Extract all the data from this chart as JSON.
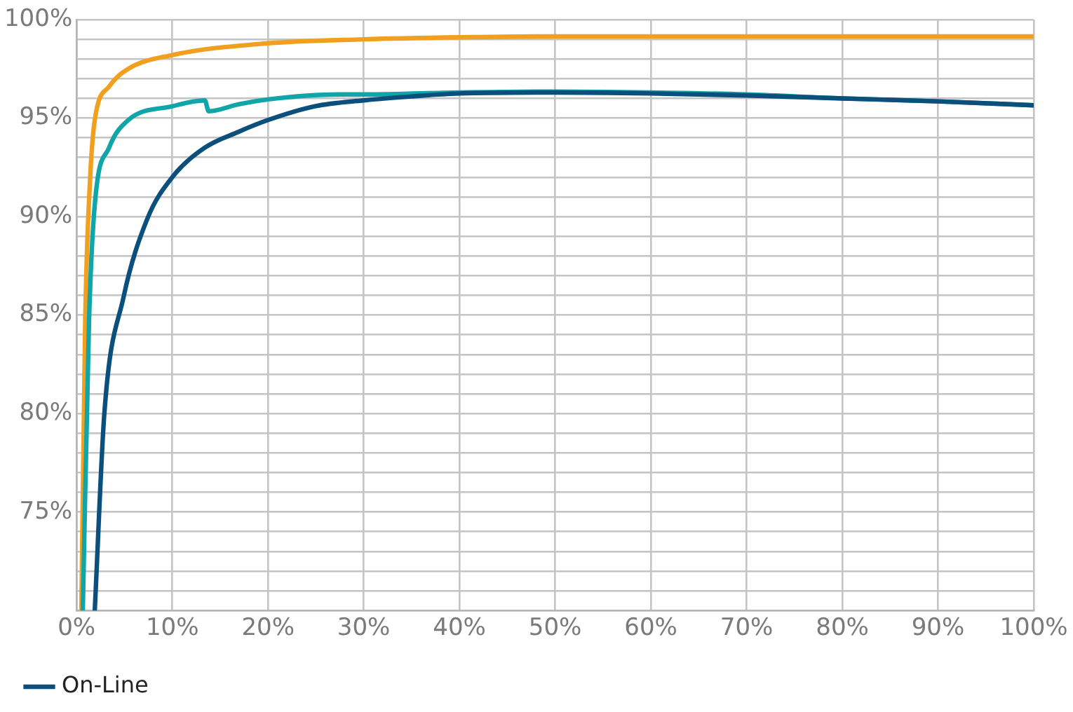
{
  "chart_data": {
    "type": "line",
    "xlim": [
      0,
      100
    ],
    "ylim": [
      70,
      100
    ],
    "xticks": [
      {
        "value": 0,
        "label": "0%"
      },
      {
        "value": 10,
        "label": "10%"
      },
      {
        "value": 20,
        "label": "20%"
      },
      {
        "value": 30,
        "label": "30%"
      },
      {
        "value": 40,
        "label": "40%"
      },
      {
        "value": 50,
        "label": "50%"
      },
      {
        "value": 60,
        "label": "60%"
      },
      {
        "value": 70,
        "label": "70%"
      },
      {
        "value": 80,
        "label": "80%"
      },
      {
        "value": 90,
        "label": "90%"
      },
      {
        "value": 100,
        "label": "100%"
      }
    ],
    "yticks": [
      {
        "value": 70,
        "label": null
      },
      {
        "value": 71,
        "label": null
      },
      {
        "value": 72,
        "label": null
      },
      {
        "value": 73,
        "label": null
      },
      {
        "value": 74,
        "label": null
      },
      {
        "value": 75,
        "label": "75%"
      },
      {
        "value": 76,
        "label": null
      },
      {
        "value": 77,
        "label": null
      },
      {
        "value": 78,
        "label": null
      },
      {
        "value": 79,
        "label": null
      },
      {
        "value": 80,
        "label": "80%"
      },
      {
        "value": 81,
        "label": null
      },
      {
        "value": 82,
        "label": null
      },
      {
        "value": 83,
        "label": null
      },
      {
        "value": 84,
        "label": null
      },
      {
        "value": 85,
        "label": "85%"
      },
      {
        "value": 86,
        "label": null
      },
      {
        "value": 87,
        "label": null
      },
      {
        "value": 88,
        "label": null
      },
      {
        "value": 89,
        "label": null
      },
      {
        "value": 90,
        "label": "90%"
      },
      {
        "value": 91,
        "label": null
      },
      {
        "value": 92,
        "label": null
      },
      {
        "value": 93,
        "label": null
      },
      {
        "value": 94,
        "label": null
      },
      {
        "value": 95,
        "label": "95%"
      },
      {
        "value": 96,
        "label": null
      },
      {
        "value": 97,
        "label": null
      },
      {
        "value": 98,
        "label": null
      },
      {
        "value": 99,
        "label": null
      },
      {
        "value": 100,
        "label": "100%"
      }
    ],
    "grid": true,
    "legend": "bottom",
    "marker": "none",
    "line_style": "solid",
    "series": [
      {
        "name": "On-Line",
        "color": "#0b4f7c",
        "x": [
          1.9,
          2.9,
          4.9,
          7.4,
          10,
          13.4,
          16.9,
          20,
          24.9,
          30,
          35,
          40,
          50,
          60,
          70,
          80,
          90,
          100
        ],
        "values": [
          70,
          80,
          85.9,
          89.9,
          92,
          93.5,
          94.3,
          94.9,
          95.6,
          95.9,
          96.1,
          96.25,
          96.3,
          96.25,
          96.15,
          96,
          95.85,
          95.65
        ]
      },
      {
        "color": "#10a5a8",
        "x": [
          0.65,
          1.3,
          1.9,
          3.4,
          5.4,
          10,
          13.4,
          13.8,
          16.9,
          20,
          27.4,
          30,
          40,
          50,
          60,
          70,
          80,
          90,
          100
        ],
        "values": [
          70,
          84.7,
          90.6,
          93.5,
          94.9,
          95.6,
          95.9,
          95.35,
          95.7,
          95.95,
          96.2,
          96.2,
          96.3,
          96.35,
          96.3,
          96.2,
          96,
          95.85,
          95.65
        ]
      },
      {
        "color": "#f0a01e",
        "x": [
          0.5,
          0.9,
          1.4,
          1.9,
          3.4,
          5.4,
          10,
          20,
          30,
          40,
          50,
          60,
          70,
          80,
          90,
          100
        ],
        "values": [
          70,
          84.7,
          91.8,
          94.9,
          96.6,
          97.5,
          98.2,
          98.8,
          99,
          99.1,
          99.15,
          99.15,
          99.15,
          99.15,
          99.15,
          99.15
        ]
      }
    ]
  }
}
